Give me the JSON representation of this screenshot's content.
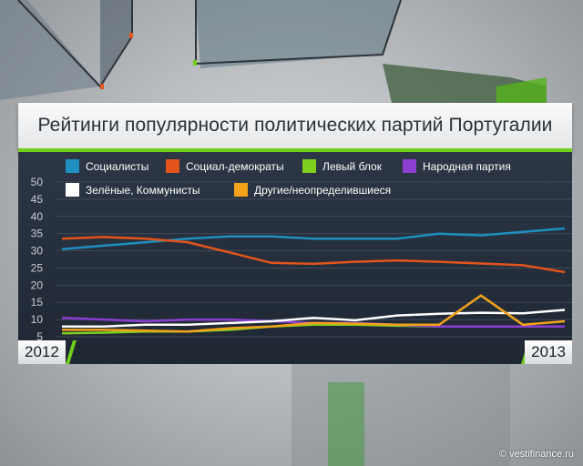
{
  "title": "Рейтинги популярности политических партий Португалии",
  "watermark": "© vestifinance.ru",
  "years": {
    "start": "2012",
    "end": "2013"
  },
  "legend": [
    {
      "label": "Социалисты",
      "color": "#1e8fc0"
    },
    {
      "label": "Социал-демократы",
      "color": "#e2541c"
    },
    {
      "label": "Левый блок",
      "color": "#7ecf1e"
    },
    {
      "label": "Народная партия",
      "color": "#8a3fd0"
    },
    {
      "label": "Зелёные, Коммунисты",
      "color": "#ffffff"
    },
    {
      "label": "Другие/неопределившиеся",
      "color": "#f3a21a"
    }
  ],
  "chart_data": {
    "type": "line",
    "title": "Рейтинги популярности политических партий Португалии",
    "ylim": [
      5,
      50
    ],
    "y_ticks": [
      5,
      10,
      15,
      20,
      25,
      30,
      35,
      40,
      45,
      50
    ],
    "x_start_label": "2012",
    "x_end_label": "2013",
    "x": [
      1,
      2,
      3,
      4,
      5,
      6,
      7,
      8,
      9,
      10,
      11,
      12,
      13
    ],
    "grid": true,
    "legend_position": "top",
    "series": [
      {
        "name": "Социалисты",
        "color": "#1e8fc0",
        "values": [
          30.5,
          31.5,
          32.5,
          33.5,
          34.2,
          34.2,
          33.5,
          33.5,
          33.5,
          35,
          34.5,
          35.5,
          36.5
        ]
      },
      {
        "name": "Социал-демократы",
        "color": "#e2541c",
        "values": [
          33.5,
          34,
          33.5,
          32.5,
          29.5,
          26.5,
          26.2,
          26.8,
          27.2,
          26.8,
          26.3,
          25.8,
          23.8
        ]
      },
      {
        "name": "Левый блок",
        "color": "#7ecf1e",
        "values": [
          6,
          6.2,
          6.5,
          6.5,
          7,
          8,
          8.5,
          8.5,
          8.2,
          8,
          8,
          8,
          8
        ]
      },
      {
        "name": "Народная партия",
        "color": "#8a3fd0",
        "values": [
          10.5,
          10,
          9.5,
          10,
          10,
          9.5,
          9,
          9,
          8.5,
          8,
          8,
          8,
          8
        ]
      },
      {
        "name": "Зелёные, Коммунисты",
        "color": "#ffffff",
        "values": [
          8,
          8,
          8.5,
          8.5,
          9,
          9.5,
          10.5,
          9.8,
          11.2,
          11.7,
          12,
          11.8,
          12.8
        ]
      },
      {
        "name": "Другие/неопределившиеся",
        "color": "#f3a21a",
        "values": [
          7,
          7,
          6.8,
          6.5,
          7.5,
          8,
          9,
          8.8,
          8.5,
          8.5,
          17,
          8.5,
          9.5
        ]
      }
    ]
  }
}
